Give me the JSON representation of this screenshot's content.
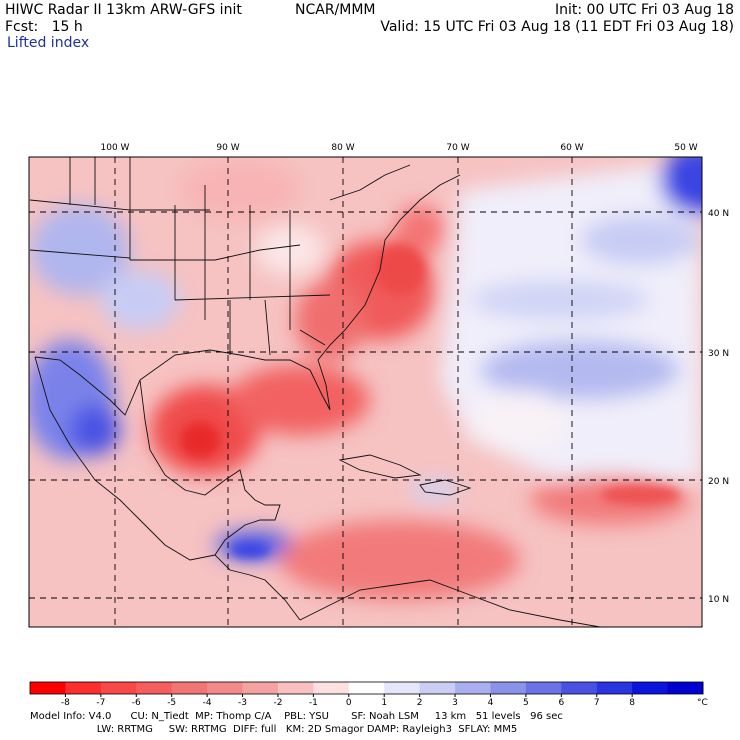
{
  "header": {
    "title": "HIWC Radar II 13km ARW-GFS init",
    "org": "NCAR/MMM",
    "init": "Init: 00 UTC Fri 03 Aug 18",
    "fcst": "Fcst:   15 h",
    "valid": "Valid: 15 UTC Fri 03 Aug 18 (11 EDT Fri 03 Aug 18)",
    "field": "Lifted index"
  },
  "map": {
    "lon_labels": [
      "100 W",
      "90 W",
      "80 W",
      "70 W",
      "60 W",
      "50 W"
    ],
    "lat_labels": [
      "40 N",
      "30 N",
      "20 N",
      "10 N"
    ],
    "colors": {
      "frame": "#000000",
      "grid": "#000000",
      "border": "#111111"
    }
  },
  "colorbar": {
    "labels": [
      "-8",
      "-7",
      "-6",
      "-5",
      "-4",
      "-3",
      "-2",
      "-1",
      "0",
      "1",
      "2",
      "3",
      "4",
      "5",
      "6",
      "7",
      "8"
    ],
    "unit": "°C",
    "colors": [
      "#ff0000",
      "#fc2e2e",
      "#f84848",
      "#f45e5e",
      "#f27474",
      "#f28a8a",
      "#f4a2a2",
      "#f8c0c0",
      "#fde0e0",
      "#ffffff",
      "#e4e6fa",
      "#cacef4",
      "#aab0ee",
      "#8a92ea",
      "#6a72e6",
      "#4a52e4",
      "#2a34e0",
      "#0a14dc",
      "#0000d0"
    ]
  },
  "footer": {
    "line1": "Model Info: V4.0      CU: N_Tiedt  MP: Thomp C/A    PBL: YSU       SF: Noah LSM     13 km   51 levels   96 sec",
    "line2": "                     LW: RRTMG     SW: RRTMG  DIFF: full   KM: 2D Smagor DAMP: Rayleigh3  SFLAY: MM5"
  }
}
